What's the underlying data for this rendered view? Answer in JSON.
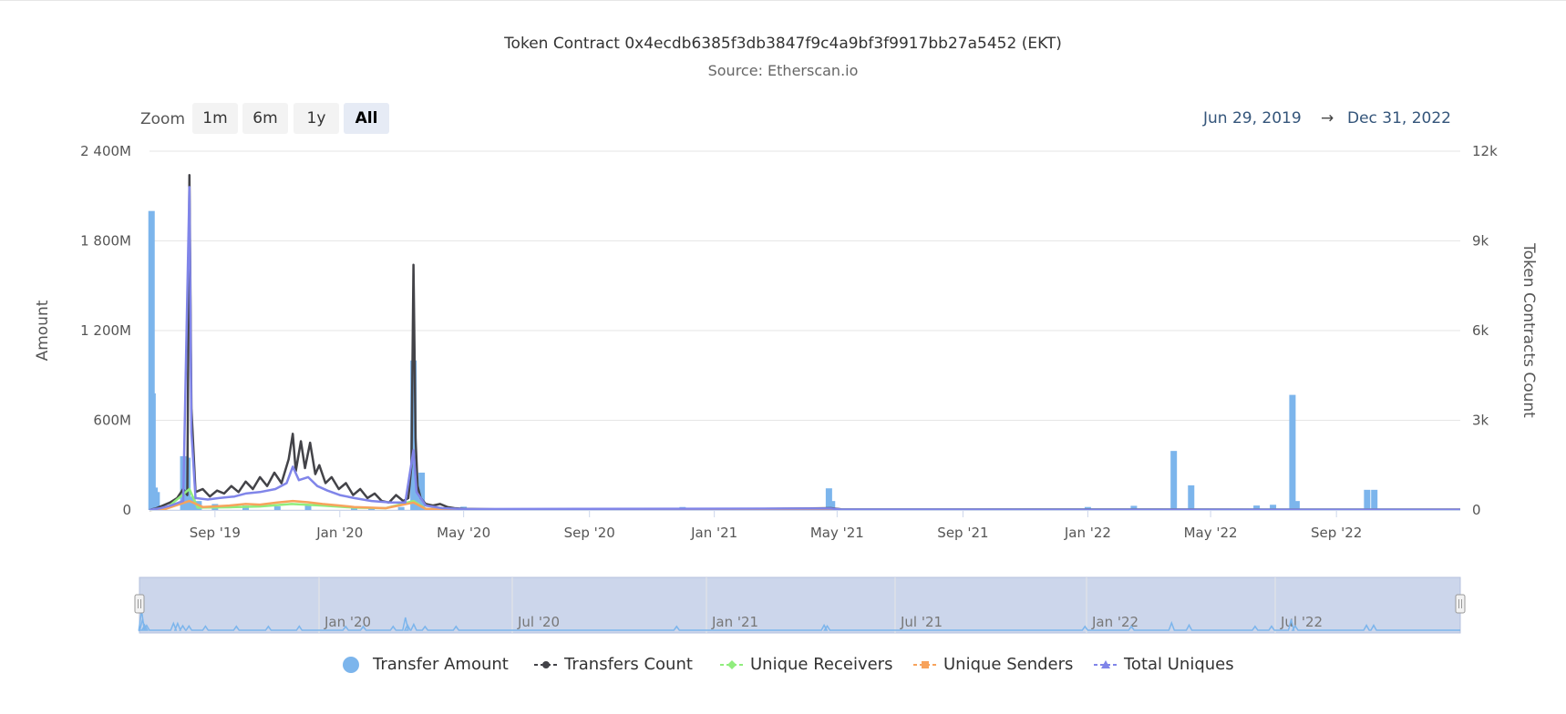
{
  "title": "Token Contract 0x4ecdb6385f3db3847f9c4a9bf3f9917bb27a5452 (EKT)",
  "subtitle": "Source: Etherscan.io",
  "range_selector": {
    "zoom_label": "Zoom",
    "buttons": [
      "1m",
      "6m",
      "1y",
      "All"
    ],
    "selected": "All",
    "from": "Jun 29, 2019",
    "arrow": "→",
    "to": "Dec 31, 2022"
  },
  "navigator": {
    "labels": [
      "Jan '20",
      "Jul '20",
      "Jan '21",
      "Jul '21",
      "Jan '22",
      "Jul '22"
    ]
  },
  "legend": [
    {
      "name": "Transfer Amount",
      "color": "#7cb5ec",
      "symbol": "circle"
    },
    {
      "name": "Transfers Count",
      "color": "#434348",
      "symbol": "circle-line"
    },
    {
      "name": "Unique Receivers",
      "color": "#90ed7d",
      "symbol": "diamond-line"
    },
    {
      "name": "Unique Senders",
      "color": "#f7a35c",
      "symbol": "square-line"
    },
    {
      "name": "Total Uniques",
      "color": "#8085e9",
      "symbol": "triangle-line"
    }
  ],
  "chart_data": {
    "type": "line",
    "x_range": [
      "2019-06-29",
      "2022-12-31"
    ],
    "x_tick_labels": [
      "Sep '19",
      "Jan '20",
      "May '20",
      "Sep '20",
      "Jan '21",
      "May '21",
      "Sep '21",
      "Jan '22",
      "May '22",
      "Sep '22"
    ],
    "x_ticks": [
      "2019-09-01",
      "2020-01-01",
      "2020-05-01",
      "2020-09-01",
      "2021-01-01",
      "2021-05-01",
      "2021-09-01",
      "2022-01-01",
      "2022-05-01",
      "2022-09-01"
    ],
    "y_left": {
      "title": "Amount",
      "min": 0,
      "max": 2400,
      "ticks": [
        0,
        600,
        1200,
        1800,
        2400
      ],
      "tick_labels": [
        "0",
        "600M",
        "1 200M",
        "1 800M",
        "2 400M"
      ]
    },
    "y_right": {
      "title": "Token Contracts Count",
      "min": 0,
      "max": 12000,
      "ticks": [
        0,
        3000,
        6000,
        9000,
        12000
      ],
      "tick_labels": [
        "0",
        "3k",
        "6k",
        "9k",
        "12k"
      ]
    },
    "grid": true,
    "legend_position": "bottom",
    "series": [
      {
        "name": "Transfer Amount",
        "type": "column",
        "axis": "left",
        "points": [
          [
            "2019-07-01",
            2000
          ],
          [
            "2019-07-02",
            780
          ],
          [
            "2019-07-04",
            150
          ],
          [
            "2019-07-06",
            120
          ],
          [
            "2019-08-01",
            360
          ],
          [
            "2019-08-05",
            350
          ],
          [
            "2019-08-10",
            90
          ],
          [
            "2019-08-16",
            60
          ],
          [
            "2019-09-01",
            40
          ],
          [
            "2019-10-01",
            30
          ],
          [
            "2019-11-01",
            25
          ],
          [
            "2019-12-01",
            35
          ],
          [
            "2020-01-15",
            20
          ],
          [
            "2020-02-01",
            15
          ],
          [
            "2020-03-01",
            20
          ],
          [
            "2020-03-13",
            1000
          ],
          [
            "2020-03-15",
            160
          ],
          [
            "2020-03-21",
            250
          ],
          [
            "2020-04-01",
            12
          ],
          [
            "2020-05-01",
            22
          ],
          [
            "2020-12-01",
            20
          ],
          [
            "2021-04-23",
            145
          ],
          [
            "2021-04-26",
            60
          ],
          [
            "2022-01-01",
            20
          ],
          [
            "2022-02-15",
            28
          ],
          [
            "2022-03-26",
            395
          ],
          [
            "2022-04-12",
            165
          ],
          [
            "2022-06-15",
            30
          ],
          [
            "2022-07-01",
            35
          ],
          [
            "2022-07-20",
            770
          ],
          [
            "2022-07-24",
            60
          ],
          [
            "2022-10-01",
            135
          ],
          [
            "2022-10-08",
            135
          ]
        ]
      },
      {
        "name": "Transfers Count",
        "type": "line",
        "axis": "right",
        "points": [
          [
            "2019-06-29",
            0
          ],
          [
            "2019-07-05",
            50
          ],
          [
            "2019-07-12",
            150
          ],
          [
            "2019-07-19",
            250
          ],
          [
            "2019-07-26",
            400
          ],
          [
            "2019-08-01",
            700
          ],
          [
            "2019-08-05",
            500
          ],
          [
            "2019-08-07",
            11200
          ],
          [
            "2019-08-09",
            3400
          ],
          [
            "2019-08-13",
            600
          ],
          [
            "2019-08-20",
            700
          ],
          [
            "2019-08-27",
            450
          ],
          [
            "2019-09-03",
            650
          ],
          [
            "2019-09-10",
            550
          ],
          [
            "2019-09-17",
            800
          ],
          [
            "2019-09-24",
            600
          ],
          [
            "2019-10-01",
            950
          ],
          [
            "2019-10-08",
            700
          ],
          [
            "2019-10-15",
            1100
          ],
          [
            "2019-10-22",
            800
          ],
          [
            "2019-10-29",
            1250
          ],
          [
            "2019-11-05",
            900
          ],
          [
            "2019-11-12",
            1700
          ],
          [
            "2019-11-16",
            2550
          ],
          [
            "2019-11-19",
            1300
          ],
          [
            "2019-11-24",
            2300
          ],
          [
            "2019-11-28",
            1400
          ],
          [
            "2019-12-03",
            2250
          ],
          [
            "2019-12-08",
            1200
          ],
          [
            "2019-12-12",
            1500
          ],
          [
            "2019-12-18",
            900
          ],
          [
            "2019-12-24",
            1100
          ],
          [
            "2019-12-31",
            700
          ],
          [
            "2020-01-07",
            900
          ],
          [
            "2020-01-14",
            500
          ],
          [
            "2020-01-21",
            700
          ],
          [
            "2020-01-28",
            400
          ],
          [
            "2020-02-04",
            550
          ],
          [
            "2020-02-11",
            300
          ],
          [
            "2020-02-18",
            250
          ],
          [
            "2020-02-25",
            500
          ],
          [
            "2020-03-03",
            300
          ],
          [
            "2020-03-08",
            400
          ],
          [
            "2020-03-11",
            1500
          ],
          [
            "2020-03-13",
            8200
          ],
          [
            "2020-03-15",
            2400
          ],
          [
            "2020-03-17",
            800
          ],
          [
            "2020-03-20",
            400
          ],
          [
            "2020-03-25",
            200
          ],
          [
            "2020-04-01",
            150
          ],
          [
            "2020-04-08",
            200
          ],
          [
            "2020-04-15",
            100
          ],
          [
            "2020-04-22",
            60
          ],
          [
            "2020-05-01",
            40
          ],
          [
            "2020-06-01",
            25
          ],
          [
            "2020-09-01",
            20
          ],
          [
            "2021-01-01",
            20
          ],
          [
            "2021-04-25",
            60
          ],
          [
            "2021-05-05",
            20
          ],
          [
            "2022-12-31",
            15
          ]
        ]
      },
      {
        "name": "Unique Receivers",
        "type": "line",
        "axis": "right",
        "points": [
          [
            "2019-06-29",
            0
          ],
          [
            "2019-07-15",
            40
          ],
          [
            "2019-08-07",
            700
          ],
          [
            "2019-08-15",
            80
          ],
          [
            "2019-09-15",
            90
          ],
          [
            "2019-10-15",
            120
          ],
          [
            "2019-11-15",
            200
          ],
          [
            "2019-12-15",
            150
          ],
          [
            "2020-01-15",
            80
          ],
          [
            "2020-02-15",
            60
          ],
          [
            "2020-03-13",
            300
          ],
          [
            "2020-03-25",
            40
          ],
          [
            "2020-05-01",
            15
          ],
          [
            "2022-12-31",
            8
          ]
        ]
      },
      {
        "name": "Unique Senders",
        "type": "line",
        "axis": "right",
        "points": [
          [
            "2019-06-29",
            0
          ],
          [
            "2019-07-15",
            40
          ],
          [
            "2019-08-07",
            300
          ],
          [
            "2019-08-20",
            100
          ],
          [
            "2019-09-15",
            150
          ],
          [
            "2019-10-01",
            200
          ],
          [
            "2019-10-15",
            180
          ],
          [
            "2019-11-01",
            250
          ],
          [
            "2019-11-16",
            300
          ],
          [
            "2019-12-01",
            260
          ],
          [
            "2019-12-15",
            200
          ],
          [
            "2020-01-01",
            150
          ],
          [
            "2020-01-15",
            100
          ],
          [
            "2020-02-15",
            60
          ],
          [
            "2020-03-13",
            250
          ],
          [
            "2020-03-25",
            40
          ],
          [
            "2020-05-01",
            10
          ],
          [
            "2022-12-31",
            5
          ]
        ]
      },
      {
        "name": "Total Uniques",
        "type": "line",
        "axis": "right",
        "points": [
          [
            "2019-06-29",
            0
          ],
          [
            "2019-07-10",
            60
          ],
          [
            "2019-07-20",
            150
          ],
          [
            "2019-08-01",
            300
          ],
          [
            "2019-08-07",
            10800
          ],
          [
            "2019-08-09",
            2600
          ],
          [
            "2019-08-13",
            400
          ],
          [
            "2019-08-25",
            350
          ],
          [
            "2019-09-05",
            400
          ],
          [
            "2019-09-20",
            450
          ],
          [
            "2019-10-01",
            550
          ],
          [
            "2019-10-15",
            600
          ],
          [
            "2019-10-30",
            700
          ],
          [
            "2019-11-10",
            900
          ],
          [
            "2019-11-16",
            1450
          ],
          [
            "2019-11-22",
            1000
          ],
          [
            "2019-12-01",
            1100
          ],
          [
            "2019-12-10",
            800
          ],
          [
            "2019-12-20",
            650
          ],
          [
            "2020-01-01",
            500
          ],
          [
            "2020-01-15",
            400
          ],
          [
            "2020-02-01",
            300
          ],
          [
            "2020-02-20",
            250
          ],
          [
            "2020-03-05",
            250
          ],
          [
            "2020-03-13",
            2000
          ],
          [
            "2020-03-16",
            600
          ],
          [
            "2020-03-25",
            150
          ],
          [
            "2020-04-10",
            60
          ],
          [
            "2020-05-01",
            30
          ],
          [
            "2021-04-25",
            50
          ],
          [
            "2021-05-05",
            15
          ],
          [
            "2022-12-31",
            10
          ]
        ]
      }
    ]
  }
}
